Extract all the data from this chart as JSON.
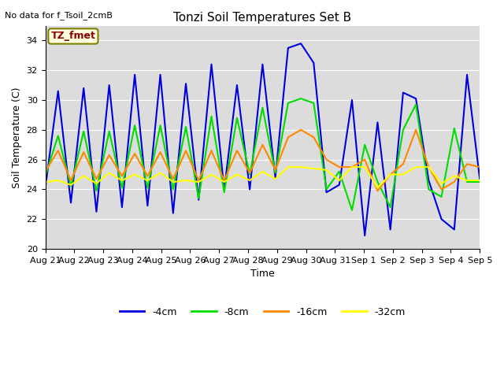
{
  "title": "Tonzi Soil Temperatures Set B",
  "xlabel": "Time",
  "ylabel": "Soil Temperature (C)",
  "no_data_text": "No data for f_Tsoil_2cmB",
  "tz_label": "TZ_fmet",
  "ylim": [
    20,
    35
  ],
  "yticks": [
    20,
    22,
    24,
    26,
    28,
    30,
    32,
    34
  ],
  "plot_bg_color": "#dcdcdc",
  "fig_bg_color": "#ffffff",
  "line_colors": {
    "-4cm": "#0000dd",
    "-8cm": "#00dd00",
    "-16cm": "#ff8800",
    "-32cm": "#ffff00"
  },
  "x_labels": [
    "Aug 21",
    "Aug 22",
    "Aug 23",
    "Aug 24",
    "Aug 25",
    "Aug 26",
    "Aug 27",
    "Aug 28",
    "Aug 29",
    "Aug 30",
    "Aug 31",
    "Sep 1",
    "Sep 2",
    "Sep 3",
    "Sep 4",
    "Sep 5"
  ],
  "series": {
    "-4cm": [
      24.1,
      30.6,
      23.1,
      30.8,
      22.5,
      31.0,
      22.8,
      31.7,
      22.9,
      31.7,
      22.4,
      31.1,
      23.3,
      32.4,
      24.0,
      31.0,
      24.0,
      32.4,
      24.8,
      33.5,
      33.8,
      32.5,
      23.8,
      24.3,
      30.0,
      20.9,
      28.5,
      21.3,
      30.5,
      30.1,
      24.6,
      22.0,
      21.3,
      31.7,
      24.7
    ],
    "-8cm": [
      24.9,
      27.6,
      24.2,
      27.9,
      23.9,
      27.9,
      24.1,
      28.3,
      24.1,
      28.3,
      24.0,
      28.2,
      23.4,
      28.9,
      23.8,
      28.8,
      25.0,
      29.5,
      25.1,
      29.8,
      30.1,
      29.8,
      24.0,
      25.2,
      22.6,
      27.0,
      24.5,
      22.8,
      28.0,
      29.7,
      24.0,
      23.5,
      28.1,
      24.5,
      24.5
    ],
    "-16cm": [
      25.2,
      26.6,
      24.6,
      26.5,
      24.7,
      26.3,
      24.9,
      26.4,
      24.9,
      26.5,
      24.7,
      26.6,
      24.6,
      26.6,
      24.6,
      26.6,
      25.1,
      27.0,
      25.3,
      27.5,
      28.0,
      27.5,
      26.0,
      25.5,
      25.5,
      26.0,
      23.9,
      25.0,
      25.7,
      28.0,
      25.5,
      24.0,
      24.5,
      25.7,
      25.5
    ],
    "-32cm": [
      24.5,
      24.6,
      24.3,
      24.9,
      24.4,
      25.1,
      24.6,
      25.0,
      24.6,
      25.1,
      24.5,
      24.6,
      24.5,
      25.0,
      24.5,
      25.0,
      24.6,
      25.2,
      24.7,
      25.5,
      25.5,
      25.4,
      25.3,
      24.6,
      25.5,
      25.5,
      24.1,
      25.0,
      25.0,
      25.5,
      25.5,
      24.4,
      24.9,
      24.6,
      24.6
    ]
  },
  "n_days": 16,
  "linewidth": 1.5,
  "title_fontsize": 11,
  "label_fontsize": 9,
  "tick_fontsize": 8,
  "legend_fontsize": 9
}
